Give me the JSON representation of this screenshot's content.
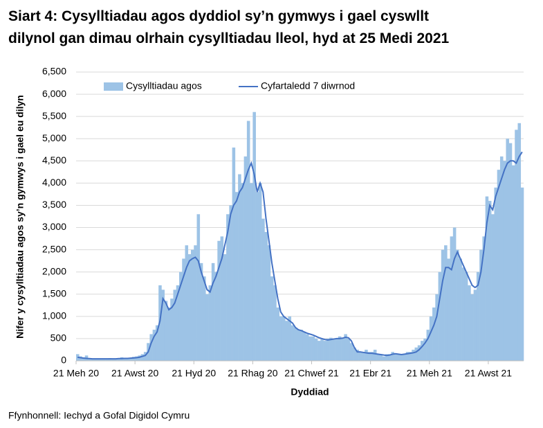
{
  "chart_data": {
    "type": "bar",
    "title": "Siart 4: Cysylltiadau agos dyddiol sy’n gymwys i gael cyswllt dilynol gan dimau olrhain cysylltiadau lleol, hyd at 25 Medi 2021",
    "y_label": "Nifer y cysylltiadau agos sy’n gymwys i gael eu dilyn",
    "x_label": "Dyddiad",
    "source": "Ffynhonnell: Iechyd a Gofal Digidol Cymru",
    "categories": [
      "21 Meh 20",
      null,
      null,
      null,
      null,
      null,
      null,
      null,
      null,
      null,
      null,
      null,
      null,
      null,
      null,
      null,
      null,
      null,
      null,
      null,
      "21 Awst 20",
      null,
      null,
      null,
      null,
      null,
      null,
      null,
      null,
      null,
      null,
      null,
      null,
      null,
      null,
      null,
      null,
      null,
      null,
      null,
      "21 Hyd 20",
      null,
      null,
      null,
      null,
      null,
      null,
      null,
      null,
      null,
      null,
      null,
      null,
      null,
      null,
      null,
      null,
      null,
      null,
      null,
      "21 Rhag 20",
      null,
      null,
      null,
      null,
      null,
      null,
      null,
      null,
      null,
      null,
      null,
      null,
      null,
      null,
      null,
      null,
      null,
      null,
      null,
      "21 Chwef 21",
      null,
      null,
      null,
      null,
      null,
      null,
      null,
      null,
      null,
      null,
      null,
      null,
      null,
      null,
      null,
      null,
      null,
      null,
      null,
      "21 Ebr 21",
      null,
      null,
      null,
      null,
      null,
      null,
      null,
      null,
      null,
      null,
      null,
      null,
      null,
      null,
      null,
      null,
      null,
      null,
      null,
      "21 Meh 21",
      null,
      null,
      null,
      null,
      null,
      null,
      null,
      null,
      null,
      null,
      null,
      null,
      null,
      null,
      null,
      null,
      null,
      null,
      null,
      "21 Awst 21",
      null,
      null,
      null,
      null,
      null,
      null,
      null,
      null,
      null,
      null,
      null
    ],
    "series": [
      {
        "name": "Cysylltiadau agos",
        "type": "bar",
        "color": "#9dc3e6",
        "values": [
          150,
          100,
          80,
          120,
          60,
          50,
          40,
          50,
          40,
          50,
          40,
          60,
          50,
          40,
          60,
          80,
          50,
          70,
          60,
          90,
          100,
          120,
          150,
          200,
          400,
          600,
          700,
          800,
          1700,
          1600,
          1350,
          1200,
          1400,
          1600,
          1700,
          2000,
          2300,
          2600,
          2400,
          2500,
          2600,
          3300,
          2200,
          1900,
          1500,
          1700,
          2200,
          2000,
          2700,
          2800,
          2400,
          3300,
          3500,
          4800,
          3800,
          4200,
          4000,
          4600,
          5400,
          4000,
          5600,
          3800,
          4000,
          3200,
          2900,
          2600,
          1900,
          1700,
          1200,
          1000,
          1000,
          900,
          1000,
          800,
          750,
          700,
          700,
          650,
          600,
          550,
          550,
          500,
          450,
          500,
          450,
          500,
          520,
          480,
          500,
          550,
          500,
          600,
          500,
          400,
          300,
          250,
          200,
          200,
          250,
          200,
          200,
          250,
          150,
          150,
          100,
          150,
          150,
          200,
          150,
          150,
          150,
          150,
          200,
          200,
          250,
          300,
          350,
          450,
          500,
          700,
          1000,
          1200,
          1500,
          2000,
          2500,
          2600,
          2300,
          2800,
          3000,
          2500,
          2300,
          2100,
          2000,
          1700,
          1500,
          1600,
          2000,
          2500,
          2800,
          3700,
          3600,
          3300,
          3900,
          4300,
          4600,
          4500,
          5000,
          4900,
          4400,
          5200,
          5350,
          3900
        ]
      },
      {
        "name": "Cyfartaledd 7 diwrnod",
        "type": "line",
        "color": "#4472c4",
        "values": [
          80,
          70,
          60,
          55,
          50,
          45,
          45,
          45,
          45,
          45,
          45,
          45,
          45,
          45,
          50,
          50,
          55,
          55,
          60,
          65,
          70,
          80,
          100,
          120,
          200,
          400,
          550,
          650,
          900,
          1400,
          1300,
          1150,
          1200,
          1300,
          1500,
          1700,
          1900,
          2100,
          2250,
          2300,
          2330,
          2250,
          2000,
          1800,
          1600,
          1550,
          1750,
          1900,
          2100,
          2300,
          2600,
          2900,
          3300,
          3500,
          3600,
          3800,
          3900,
          4100,
          4300,
          4450,
          4200,
          3800,
          4000,
          3800,
          3200,
          2700,
          2200,
          1800,
          1400,
          1100,
          1000,
          950,
          900,
          850,
          750,
          700,
          680,
          650,
          620,
          600,
          580,
          550,
          520,
          500,
          480,
          470,
          480,
          490,
          500,
          500,
          510,
          530,
          520,
          450,
          300,
          200,
          200,
          190,
          180,
          170,
          170,
          160,
          150,
          140,
          130,
          120,
          130,
          150,
          160,
          150,
          140,
          150,
          160,
          170,
          180,
          200,
          250,
          320,
          400,
          500,
          650,
          800,
          1000,
          1400,
          1800,
          2100,
          2100,
          2050,
          2300,
          2450,
          2300,
          2150,
          2000,
          1850,
          1700,
          1650,
          1700,
          2000,
          2500,
          3100,
          3500,
          3400,
          3700,
          3900,
          4100,
          4300,
          4450,
          4500,
          4500,
          4450,
          4600,
          4700
        ]
      }
    ],
    "ylim": [
      0,
      6500
    ],
    "yticks": [
      0,
      500,
      {
        "value": 1000,
        "label": "1,000"
      },
      {
        "value": 1500,
        "label": "1,500"
      },
      {
        "value": 2000,
        "label": "2,000"
      },
      {
        "value": 2500,
        "label": "2,500"
      },
      {
        "value": 3000,
        "label": "3,000"
      },
      {
        "value": 3500,
        "label": "3,500"
      },
      {
        "value": 4000,
        "label": "4,000"
      },
      {
        "value": 4500,
        "label": "4,500"
      },
      {
        "value": 5000,
        "label": "5,000"
      },
      {
        "value": 5500,
        "label": "5,500"
      },
      {
        "value": 6000,
        "label": "6,000"
      },
      {
        "value": 6500,
        "label": "6,500"
      }
    ],
    "grid": true
  }
}
